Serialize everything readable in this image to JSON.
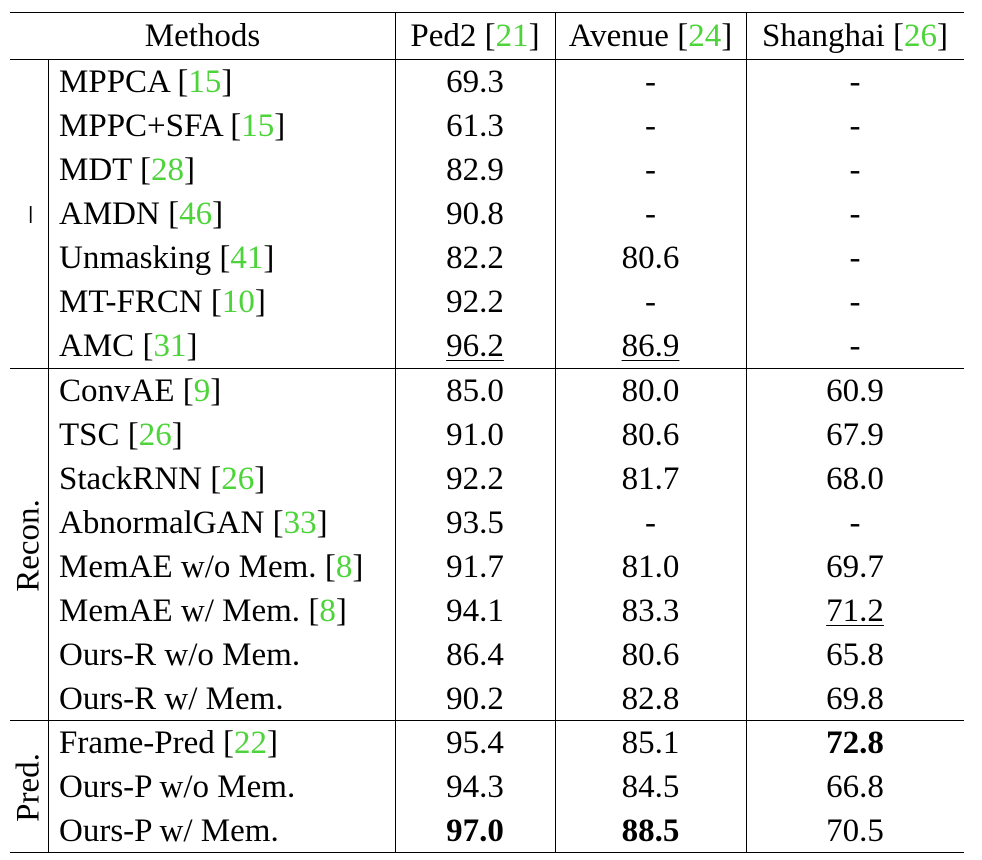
{
  "header": {
    "methods": "Methods",
    "columns": [
      {
        "name": "Ped2",
        "ref": "21"
      },
      {
        "name": "Avenue",
        "ref": "24"
      },
      {
        "name": "Shanghai",
        "ref": "26"
      }
    ]
  },
  "groups": [
    {
      "label": "–",
      "rows": [
        {
          "method": "MPPCA",
          "ref": "15",
          "values": [
            "69.3",
            "-",
            "-"
          ],
          "style": [
            "",
            "",
            ""
          ]
        },
        {
          "method": "MPPC+SFA",
          "ref": "15",
          "values": [
            "61.3",
            "-",
            "-"
          ],
          "style": [
            "",
            "",
            ""
          ]
        },
        {
          "method": "MDT",
          "ref": "28",
          "values": [
            "82.9",
            "-",
            "-"
          ],
          "style": [
            "",
            "",
            ""
          ]
        },
        {
          "method": "AMDN",
          "ref": "46",
          "values": [
            "90.8",
            "-",
            "-"
          ],
          "style": [
            "",
            "",
            ""
          ]
        },
        {
          "method": "Unmasking",
          "ref": "41",
          "values": [
            "82.2",
            "80.6",
            "-"
          ],
          "style": [
            "",
            "",
            ""
          ]
        },
        {
          "method": "MT-FRCN",
          "ref": "10",
          "values": [
            "92.2",
            "-",
            "-"
          ],
          "style": [
            "",
            "",
            ""
          ]
        },
        {
          "method": "AMC",
          "ref": "31",
          "values": [
            "96.2",
            "86.9",
            "-"
          ],
          "style": [
            "underline",
            "underline",
            ""
          ]
        }
      ]
    },
    {
      "label": "Recon.",
      "rows": [
        {
          "method": "ConvAE",
          "ref": "9",
          "values": [
            "85.0",
            "80.0",
            "60.9"
          ],
          "style": [
            "",
            "",
            ""
          ]
        },
        {
          "method": "TSC",
          "ref": "26",
          "values": [
            "91.0",
            "80.6",
            "67.9"
          ],
          "style": [
            "",
            "",
            ""
          ]
        },
        {
          "method": "StackRNN",
          "ref": "26",
          "values": [
            "92.2",
            "81.7",
            "68.0"
          ],
          "style": [
            "",
            "",
            ""
          ]
        },
        {
          "method": "AbnormalGAN",
          "ref": "33",
          "values": [
            "93.5",
            "-",
            "-"
          ],
          "style": [
            "",
            "",
            ""
          ]
        },
        {
          "method": "MemAE w/o Mem.",
          "ref": "8",
          "values": [
            "91.7",
            "81.0",
            "69.7"
          ],
          "style": [
            "",
            "",
            ""
          ]
        },
        {
          "method": "MemAE w/ Mem.",
          "ref": "8",
          "values": [
            "94.1",
            "83.3",
            "71.2"
          ],
          "style": [
            "",
            "",
            "underline"
          ]
        },
        {
          "method": "Ours-R w/o Mem.",
          "ref": "",
          "values": [
            "86.4",
            "80.6",
            "65.8"
          ],
          "style": [
            "",
            "",
            ""
          ]
        },
        {
          "method": "Ours-R w/ Mem.",
          "ref": "",
          "values": [
            "90.2",
            "82.8",
            "69.8"
          ],
          "style": [
            "",
            "",
            ""
          ]
        }
      ]
    },
    {
      "label": "Pred.",
      "rows": [
        {
          "method": "Frame-Pred",
          "ref": "22",
          "values": [
            "95.4",
            "85.1",
            "72.8"
          ],
          "style": [
            "",
            "",
            "bold"
          ]
        },
        {
          "method": "Ours-P w/o Mem.",
          "ref": "",
          "values": [
            "94.3",
            "84.5",
            "66.8"
          ],
          "style": [
            "",
            "",
            ""
          ]
        },
        {
          "method": "Ours-P w/ Mem.",
          "ref": "",
          "values": [
            "97.0",
            "88.5",
            "70.5"
          ],
          "style": [
            "bold",
            "bold",
            ""
          ]
        }
      ]
    }
  ]
}
